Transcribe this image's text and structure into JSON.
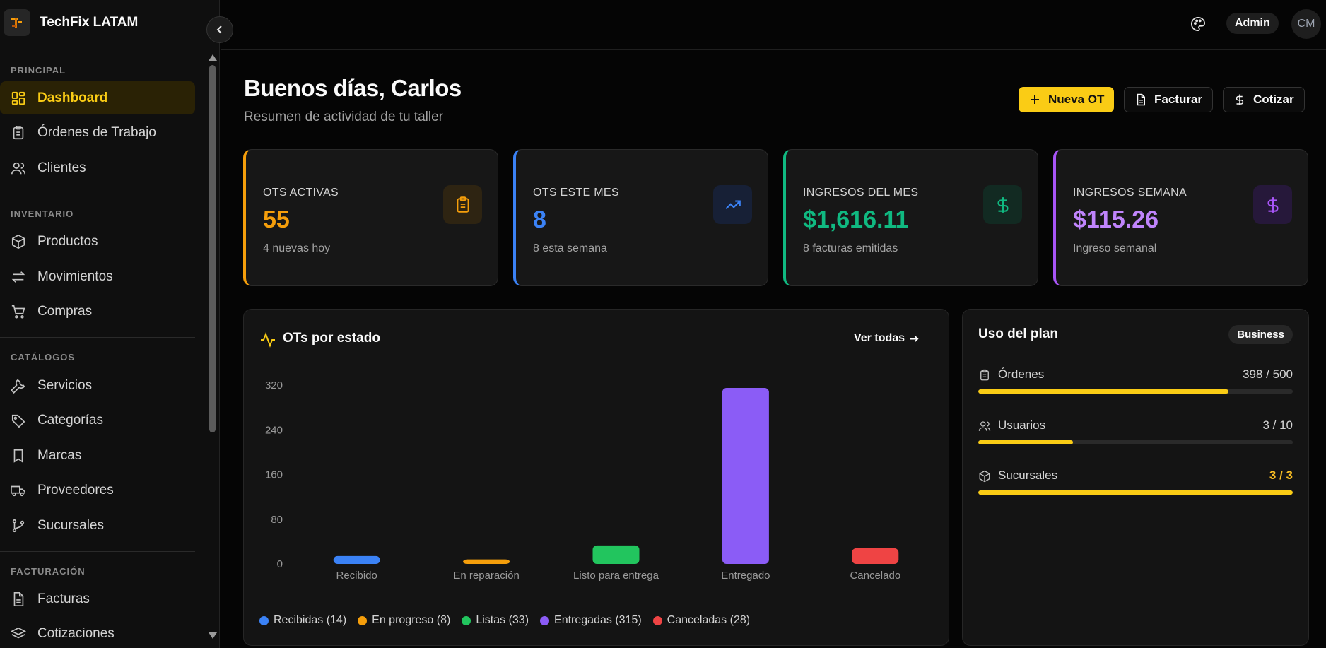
{
  "brand": {
    "name": "TechFix LATAM"
  },
  "topbar": {
    "admin_label": "Admin",
    "avatar_initials": "CM"
  },
  "sidebar": {
    "sections": {
      "principal": "PRINCIPAL",
      "inventario": "INVENTARIO",
      "catalogos": "CATÁLOGOS",
      "facturacion": "FACTURACIÓN"
    },
    "items": {
      "dashboard": "Dashboard",
      "ordenes": "Órdenes de Trabajo",
      "clientes": "Clientes",
      "productos": "Productos",
      "movimientos": "Movimientos",
      "compras": "Compras",
      "servicios": "Servicios",
      "categorias": "Categorías",
      "marcas": "Marcas",
      "proveedores": "Proveedores",
      "sucursales": "Sucursales",
      "facturas": "Facturas",
      "cotizaciones": "Cotizaciones"
    },
    "active": "dashboard"
  },
  "header": {
    "greeting": "Buenos días, Carlos",
    "subtitle": "Resumen de actividad de tu taller",
    "actions": {
      "new_ot": "Nueva OT",
      "invoice": "Facturar",
      "quote": "Cotizar"
    }
  },
  "stats": [
    {
      "title": "OTS ACTIVAS",
      "value": "55",
      "sub": "4 nuevas hoy",
      "color": "#f59e0b",
      "icon": "clipboard-icon"
    },
    {
      "title": "OTS ESTE MES",
      "value": "8",
      "sub": "8 esta semana",
      "color": "#3b82f6",
      "icon": "trending-up-icon"
    },
    {
      "title": "INGRESOS DEL MES",
      "value": "$1,616.11",
      "sub": "8 facturas emitidas",
      "color": "#10b981",
      "icon": "dollar-icon"
    },
    {
      "title": "INGRESOS SEMANA",
      "value": "$115.26",
      "sub": "Ingreso semanal",
      "color": "#a855f7",
      "icon": "dollar-icon"
    }
  ],
  "chart_panel": {
    "title": "OTs por estado",
    "see_all": "Ver todas"
  },
  "chart_data": {
    "type": "bar",
    "categories": [
      "Recibido",
      "En reparación",
      "Listo para entrega",
      "Entregado",
      "Cancelado"
    ],
    "values": [
      14,
      8,
      33,
      315,
      28
    ],
    "colors": [
      "#3b82f6",
      "#f59e0b",
      "#22c55e",
      "#8b5cf6",
      "#ef4444"
    ],
    "yticks": [
      0,
      80,
      160,
      240,
      320
    ],
    "ylim": [
      0,
      320
    ],
    "legend": [
      {
        "label": "Recibidas (14)",
        "color": "#3b82f6"
      },
      {
        "label": "En progreso (8)",
        "color": "#f59e0b"
      },
      {
        "label": "Listas (33)",
        "color": "#22c55e"
      },
      {
        "label": "Entregadas (315)",
        "color": "#8b5cf6"
      },
      {
        "label": "Canceladas (28)",
        "color": "#ef4444"
      }
    ],
    "legend_position": "bottom",
    "grid": false
  },
  "plan": {
    "title": "Uso del plan",
    "badge": "Business",
    "rows": [
      {
        "label": "Órdenes",
        "value": "398 / 500",
        "used": 398,
        "limit": 500,
        "icon": "clipboard-icon"
      },
      {
        "label": "Usuarios",
        "value": "3 / 10",
        "used": 3,
        "limit": 10,
        "icon": "users-icon"
      },
      {
        "label": "Sucursales",
        "value": "3 / 3",
        "used": 3,
        "limit": 3,
        "icon": "box-icon"
      }
    ]
  }
}
